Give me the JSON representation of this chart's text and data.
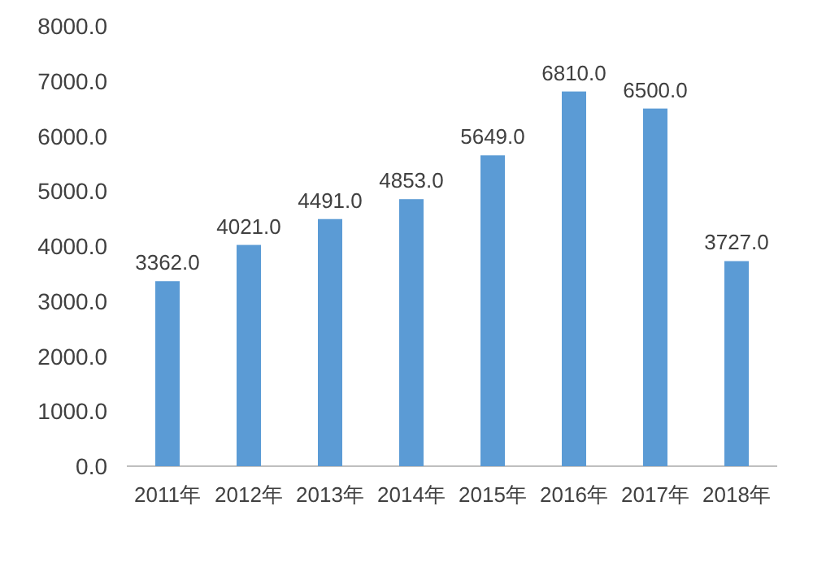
{
  "chart_data": {
    "type": "bar",
    "categories": [
      "2011年",
      "2012年",
      "2013年",
      "2014年",
      "2015年",
      "2016年",
      "2017年",
      "2018年"
    ],
    "series": [
      {
        "color": "#5b9bd5",
        "values": [
          3362,
          4021,
          4491,
          4853,
          5649,
          6810,
          6500,
          3727
        ]
      }
    ],
    "value_labels": [
      "3362.0",
      "4021.0",
      "4491.0",
      "4853.0",
      "5649.0",
      "6810.0",
      "6500.0",
      "3727.0"
    ],
    "ylim": [
      0,
      8000
    ],
    "yticks": [
      {
        "value": 0,
        "label": "0.0"
      },
      {
        "value": 1000,
        "label": "1000.0"
      },
      {
        "value": 2000,
        "label": "2000.0"
      },
      {
        "value": 3000,
        "label": "3000.0"
      },
      {
        "value": 4000,
        "label": "4000.0"
      },
      {
        "value": 5000,
        "label": "5000.0"
      },
      {
        "value": 6000,
        "label": "6000.0"
      },
      {
        "value": 7000,
        "label": "7000.0"
      },
      {
        "value": 8000,
        "label": "8000.0"
      }
    ],
    "grid": false
  }
}
